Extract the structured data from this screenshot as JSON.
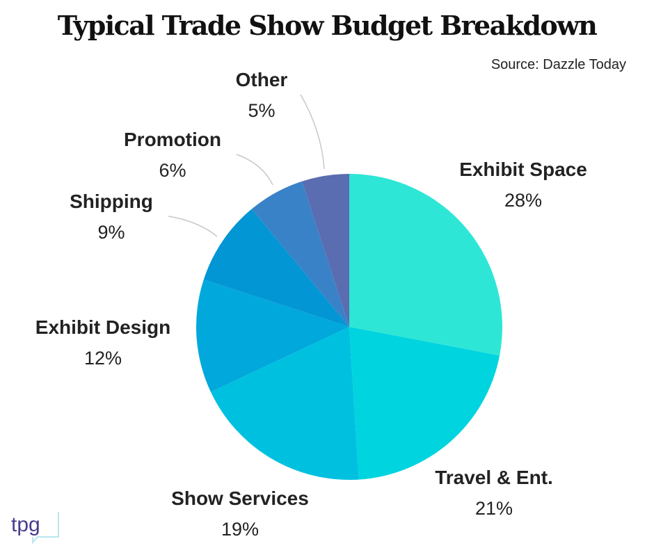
{
  "title": "Typical Trade Show Budget Breakdown",
  "source": "Source: Dazzle Today",
  "logo_text": "tpg",
  "chart_data": {
    "type": "pie",
    "title": "Typical Trade Show Budget Breakdown",
    "slices": [
      {
        "label": "Exhibit Space",
        "value": 28,
        "display": "28%",
        "color": "#2ee6d6"
      },
      {
        "label": "Travel & Ent.",
        "value": 21,
        "display": "21%",
        "color": "#00d4df"
      },
      {
        "label": "Show Services",
        "value": 19,
        "display": "19%",
        "color": "#00c0e0"
      },
      {
        "label": "Exhibit Design",
        "value": 12,
        "display": "12%",
        "color": "#00a8db"
      },
      {
        "label": "Shipping",
        "value": 9,
        "display": "9%",
        "color": "#0396d4"
      },
      {
        "label": "Promotion",
        "value": 6,
        "display": "6%",
        "color": "#3a82c8"
      },
      {
        "label": "Other",
        "value": 5,
        "display": "5%",
        "color": "#5a6db0"
      }
    ],
    "start": "12 o'clock",
    "direction": "clockwise"
  }
}
